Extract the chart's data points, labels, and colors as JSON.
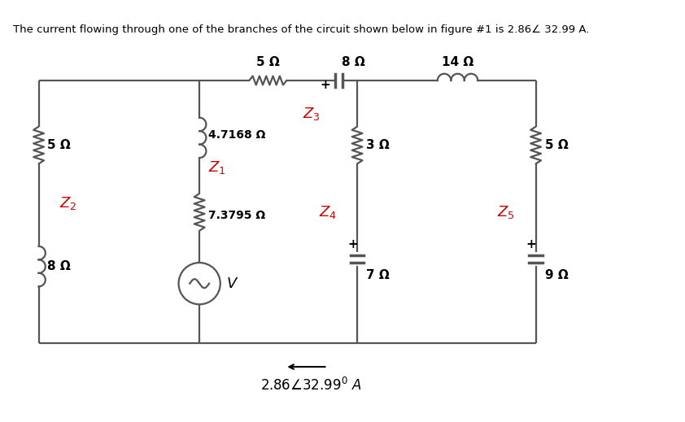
{
  "title_text": "The current flowing through one of the branches of the circuit shown below in figure #1 is 2.86∠ 32.99 A.",
  "background_color": "#ffffff",
  "line_color": "#555555",
  "text_color": "#000000",
  "red_color": "#cc0000",
  "fig_w": 8.42,
  "fig_h": 5.19,
  "dpi": 100,
  "XL": 52,
  "XM1": 268,
  "XM2": 480,
  "XR": 720,
  "YT": 435,
  "YB": 82,
  "res_5L": "5 Ω",
  "ind_8L": "8 Ω",
  "res_5top": "5 Ω",
  "cap_8top": "8 Ω",
  "ind_14top": "14 Ω",
  "ind_4p7": "4.7168 Ω",
  "res_7p3": "7.3795 Ω",
  "res_3m": "3 Ω",
  "res_5r": "5 Ω",
  "cap_7m": "7 Ω",
  "cap_9r": "9 Ω"
}
